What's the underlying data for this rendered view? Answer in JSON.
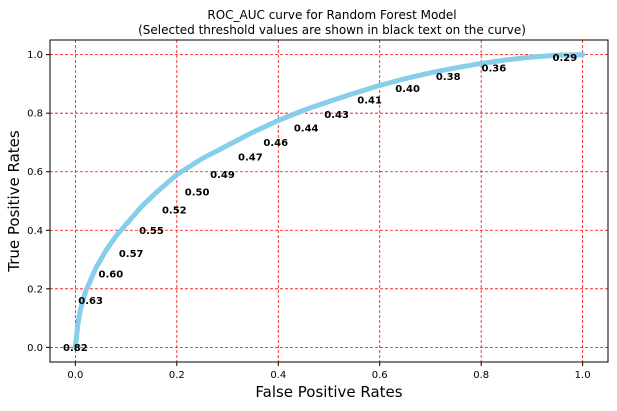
{
  "chart_data": {
    "type": "line",
    "title": "ROC_AUC curve for Random Forest Model",
    "subtitle": "(Selected threshold values are shown in black text on the curve)",
    "xlabel": "False Positive Rates",
    "ylabel": "True Positive Rates",
    "xlim": [
      -0.05,
      1.05
    ],
    "ylim": [
      -0.05,
      1.05
    ],
    "xticks": [
      0.0,
      0.2,
      0.4,
      0.6,
      0.8,
      1.0
    ],
    "xtick_labels": [
      "0.0",
      "0.2",
      "0.4",
      "0.6",
      "0.8",
      "1.0"
    ],
    "yticks": [
      0.0,
      0.2,
      0.4,
      0.6,
      0.8,
      1.0
    ],
    "ytick_labels": [
      "0.0",
      "0.2",
      "0.4",
      "0.6",
      "0.8",
      "1.0"
    ],
    "grid": true,
    "grid_color": "#ff0000",
    "line_color": "#87ceeb",
    "curve": {
      "x": [
        0.0,
        0.005,
        0.01,
        0.02,
        0.04,
        0.06,
        0.08,
        0.1,
        0.13,
        0.16,
        0.2,
        0.25,
        0.3,
        0.35,
        0.4,
        0.45,
        0.5,
        0.55,
        0.6,
        0.65,
        0.7,
        0.75,
        0.8,
        0.85,
        0.9,
        0.95,
        1.0
      ],
      "y": [
        0.0,
        0.08,
        0.13,
        0.19,
        0.27,
        0.33,
        0.38,
        0.42,
        0.48,
        0.53,
        0.59,
        0.645,
        0.69,
        0.735,
        0.775,
        0.81,
        0.84,
        0.868,
        0.895,
        0.918,
        0.938,
        0.955,
        0.97,
        0.982,
        0.992,
        0.998,
        1.0
      ]
    },
    "thresholds": [
      {
        "label": "0.82",
        "x": 0.0,
        "y": 0.0
      },
      {
        "label": "0.63",
        "x": 0.03,
        "y": 0.16
      },
      {
        "label": "0.60",
        "x": 0.07,
        "y": 0.25
      },
      {
        "label": "0.57",
        "x": 0.11,
        "y": 0.32
      },
      {
        "label": "0.55",
        "x": 0.15,
        "y": 0.4
      },
      {
        "label": "0.52",
        "x": 0.195,
        "y": 0.47
      },
      {
        "label": "0.50",
        "x": 0.24,
        "y": 0.53
      },
      {
        "label": "0.49",
        "x": 0.29,
        "y": 0.59
      },
      {
        "label": "0.47",
        "x": 0.345,
        "y": 0.65
      },
      {
        "label": "0.46",
        "x": 0.395,
        "y": 0.7
      },
      {
        "label": "0.44",
        "x": 0.455,
        "y": 0.75
      },
      {
        "label": "0.43",
        "x": 0.515,
        "y": 0.795
      },
      {
        "label": "0.41",
        "x": 0.58,
        "y": 0.845
      },
      {
        "label": "0.40",
        "x": 0.655,
        "y": 0.885
      },
      {
        "label": "0.38",
        "x": 0.735,
        "y": 0.925
      },
      {
        "label": "0.36",
        "x": 0.825,
        "y": 0.955
      },
      {
        "label": "0.29",
        "x": 0.965,
        "y": 0.99
      }
    ]
  }
}
